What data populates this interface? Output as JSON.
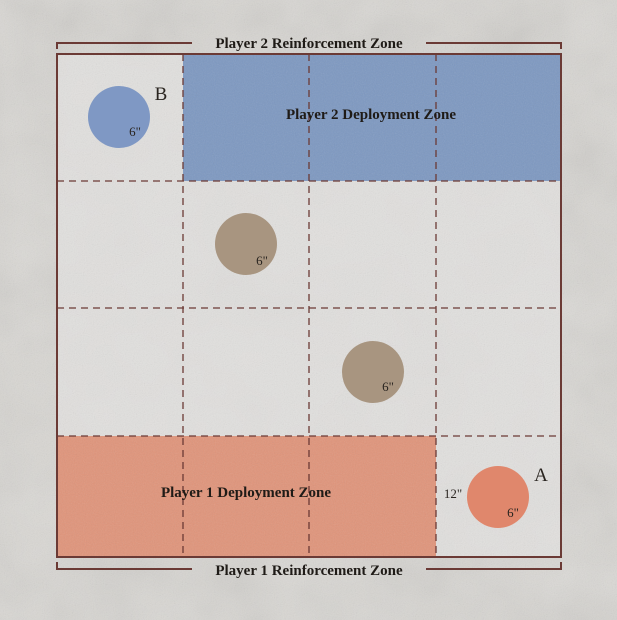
{
  "colors": {
    "background": "#d9d7d3",
    "grid_line": "#6b3a35",
    "player1_zone": "#e0947a",
    "player2_zone": "#7d98c1",
    "neutral_objective": "#a89580",
    "player1_objective": "#e0876c",
    "player2_objective": "#7f98c4"
  },
  "labels": {
    "player2_reinforcement": "Player 2 Reinforcement Zone",
    "player1_reinforcement": "Player 1 Reinforcement Zone",
    "player2_deployment": "Player 2 Deployment Zone",
    "player1_deployment": "Player 1 Deployment Zone"
  },
  "markers": {
    "b": {
      "letter": "B",
      "radius_label": "6\""
    },
    "center_upper": {
      "radius_label": "6\""
    },
    "center_lower": {
      "radius_label": "6\""
    },
    "a": {
      "letter": "A",
      "radius_label": "6\"",
      "distance_label": "12\""
    }
  }
}
